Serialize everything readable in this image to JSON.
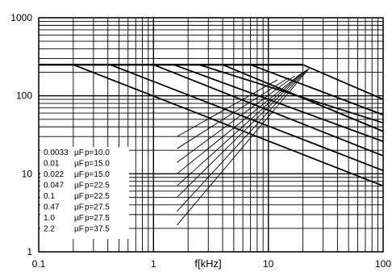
{
  "chart_data": {
    "type": "line",
    "xlabel": "f[kHz]",
    "ylabel": "",
    "x_scale": "log",
    "y_scale": "log",
    "xlim": [
      0.1,
      100
    ],
    "ylim": [
      1,
      1000
    ],
    "grid": true,
    "legend_position": "bottom-left",
    "x_ticks": [
      "0.1",
      "1",
      "10",
      "100"
    ],
    "y_ticks": [
      "1",
      "10",
      "100",
      "1000"
    ],
    "flat_limit": {
      "value": 250,
      "x": [
        0.1,
        20
      ]
    },
    "series": [
      {
        "cap": "0.0033",
        "unit": "µF",
        "pitch": "p=10.0",
        "falling": [
          [
            2.5,
            250
          ],
          [
            100,
            45
          ]
        ],
        "rising": [
          [
            1.6,
            30
          ],
          [
            12,
            160
          ]
        ]
      },
      {
        "cap": "0.01",
        "unit": "µF",
        "pitch": "p=15.0",
        "falling": [
          [
            0.2,
            250
          ],
          [
            100,
            7
          ]
        ],
        "rising": [
          [
            1.6,
            21
          ],
          [
            15,
            170
          ]
        ]
      },
      {
        "cap": "0.022",
        "unit": "µF",
        "pitch": "p=15.0",
        "falling": [
          [
            0.42,
            250
          ],
          [
            100,
            11
          ]
        ],
        "rising": [
          [
            1.6,
            14
          ],
          [
            17,
            180
          ]
        ]
      },
      {
        "cap": "0.047",
        "unit": "µF",
        "pitch": "p=22.5",
        "falling": [
          [
            1.0,
            250
          ],
          [
            100,
            17
          ]
        ],
        "rising": [
          [
            1.6,
            10
          ],
          [
            19,
            190
          ]
        ]
      },
      {
        "cap": "0.1",
        "unit": "µF",
        "pitch": "p=22.5",
        "falling": [
          [
            1.5,
            250
          ],
          [
            100,
            26
          ]
        ],
        "rising": [
          [
            1.6,
            7
          ],
          [
            20,
            200
          ]
        ]
      },
      {
        "cap": "0.47",
        "unit": "µF",
        "pitch": "p=27.5",
        "falling": [
          [
            4.0,
            250
          ],
          [
            100,
            35
          ]
        ],
        "rising": [
          [
            1.6,
            5
          ],
          [
            21,
            210
          ]
        ]
      },
      {
        "cap": "1.0",
        "unit": "µF",
        "pitch": "p=27.5",
        "falling": [
          [
            7.0,
            250
          ],
          [
            100,
            57
          ]
        ],
        "rising": [
          [
            1.6,
            3.3
          ],
          [
            22,
            220
          ]
        ]
      },
      {
        "cap": "2.2",
        "unit": "µF",
        "pitch": "p=37.5",
        "falling": [
          [
            20,
            250
          ],
          [
            100,
            90
          ]
        ],
        "rising": [
          [
            1.6,
            2.2
          ],
          [
            23,
            230
          ]
        ]
      }
    ]
  }
}
